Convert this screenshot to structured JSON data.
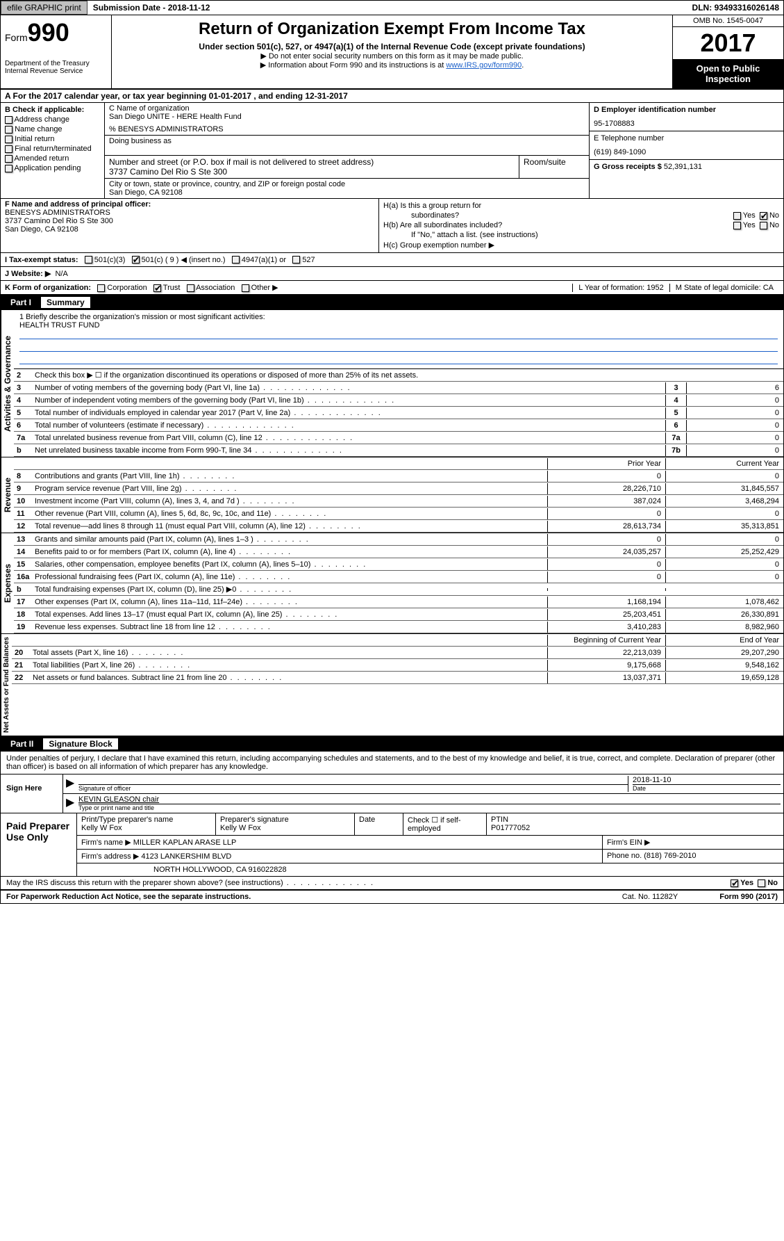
{
  "topbar": {
    "efile_btn": "efile GRAPHIC print",
    "sub_lbl": "Submission Date",
    "sub_date": "2018-11-12",
    "dln_lbl": "DLN:",
    "dln": "93493316026148"
  },
  "header": {
    "form_small": "Form",
    "form_big": "990",
    "dept1": "Department of the Treasury",
    "dept2": "Internal Revenue Service",
    "title": "Return of Organization Exempt From Income Tax",
    "sub": "Under section 501(c), 527, or 4947(a)(1) of the Internal Revenue Code (except private foundations)",
    "note1": "▶ Do not enter social security numbers on this form as it may be made public.",
    "note2_pre": "▶ Information about Form 990 and its instructions is at ",
    "note2_link": "www.IRS.gov/form990",
    "omb": "OMB No. 1545-0047",
    "year": "2017",
    "inspect1": "Open to Public",
    "inspect2": "Inspection"
  },
  "section_a": "A  For the 2017 calendar year, or tax year beginning 01-01-2017   , and ending 12-31-2017",
  "box_b": {
    "title": "B Check if applicable:",
    "items": [
      "Address change",
      "Name change",
      "Initial return",
      "Final return/terminated",
      "Amended return",
      "Application pending"
    ]
  },
  "box_c": {
    "name_lbl": "C Name of organization",
    "name": "San Diego UNITE - HERE Health Fund",
    "care_of": "% BENESYS ADMINISTRATORS",
    "dba_lbl": "Doing business as",
    "addr_lbl": "Number and street (or P.O. box if mail is not delivered to street address)",
    "addr": "3737 Camino Del Rio S Ste 300",
    "room_lbl": "Room/suite",
    "city_lbl": "City or town, state or province, country, and ZIP or foreign postal code",
    "city": "San Diego, CA  92108"
  },
  "box_d": {
    "ein_lbl": "D Employer identification number",
    "ein": "95-1708883",
    "tel_lbl": "E Telephone number",
    "tel": "(619) 849-1090",
    "gross_lbl": "G Gross receipts $",
    "gross": "52,391,131"
  },
  "box_f": {
    "lbl": "F Name and address of principal officer:",
    "name": "BENESYS ADMINISTRATORS",
    "addr1": "3737 Camino Del Rio S Ste 300",
    "addr2": "San Diego, CA  92108"
  },
  "box_h": {
    "ha": "H(a)  Is this a group return for",
    "ha2": "subordinates?",
    "hb": "H(b)  Are all subordinates included?",
    "hnote": "If \"No,\" attach a list. (see instructions)",
    "hc": "H(c)  Group exemption number ▶",
    "yes": "Yes",
    "no": "No"
  },
  "row_i": {
    "lbl": "I  Tax-exempt status:",
    "o1": "501(c)(3)",
    "o2": "501(c) ( 9 ) ◀ (insert no.)",
    "o3": "4947(a)(1) or",
    "o4": "527"
  },
  "row_j": {
    "lbl": "J  Website: ▶",
    "val": "N/A"
  },
  "row_k": {
    "lbl": "K Form of organization:",
    "o1": "Corporation",
    "o2": "Trust",
    "o3": "Association",
    "o4": "Other ▶",
    "l": "L Year of formation: 1952",
    "m": "M State of legal domicile: CA"
  },
  "part1": {
    "num": "Part I",
    "title": "Summary"
  },
  "summary": {
    "side1": "Activities & Governance",
    "side2": "Revenue",
    "side3": "Expenses",
    "side4": "Net Assets or Fund Balances",
    "l1_lbl": "1  Briefly describe the organization's mission or most significant activities:",
    "l1_val": "HEALTH TRUST FUND",
    "l2": "Check this box ▶ ☐  if the organization discontinued its operations or disposed of more than 25% of its net assets.",
    "rows_gov": [
      {
        "n": "3",
        "d": "Number of voting members of the governing body (Part VI, line 1a)",
        "b": "3",
        "v": "6"
      },
      {
        "n": "4",
        "d": "Number of independent voting members of the governing body (Part VI, line 1b)",
        "b": "4",
        "v": "0"
      },
      {
        "n": "5",
        "d": "Total number of individuals employed in calendar year 2017 (Part V, line 2a)",
        "b": "5",
        "v": "0"
      },
      {
        "n": "6",
        "d": "Total number of volunteers (estimate if necessary)",
        "b": "6",
        "v": "0"
      },
      {
        "n": "7a",
        "d": "Total unrelated business revenue from Part VIII, column (C), line 12",
        "b": "7a",
        "v": "0"
      },
      {
        "n": "b",
        "d": "Net unrelated business taxable income from Form 990-T, line 34",
        "b": "7b",
        "v": "0"
      }
    ],
    "hdr_py": "Prior Year",
    "hdr_cy": "Current Year",
    "rows_rev": [
      {
        "n": "8",
        "d": "Contributions and grants (Part VIII, line 1h)",
        "py": "0",
        "cy": "0"
      },
      {
        "n": "9",
        "d": "Program service revenue (Part VIII, line 2g)",
        "py": "28,226,710",
        "cy": "31,845,557"
      },
      {
        "n": "10",
        "d": "Investment income (Part VIII, column (A), lines 3, 4, and 7d )",
        "py": "387,024",
        "cy": "3,468,294"
      },
      {
        "n": "11",
        "d": "Other revenue (Part VIII, column (A), lines 5, 6d, 8c, 9c, 10c, and 11e)",
        "py": "0",
        "cy": "0"
      },
      {
        "n": "12",
        "d": "Total revenue—add lines 8 through 11 (must equal Part VIII, column (A), line 12)",
        "py": "28,613,734",
        "cy": "35,313,851"
      }
    ],
    "rows_exp": [
      {
        "n": "13",
        "d": "Grants and similar amounts paid (Part IX, column (A), lines 1–3 )",
        "py": "0",
        "cy": "0"
      },
      {
        "n": "14",
        "d": "Benefits paid to or for members (Part IX, column (A), line 4)",
        "py": "24,035,257",
        "cy": "25,252,429"
      },
      {
        "n": "15",
        "d": "Salaries, other compensation, employee benefits (Part IX, column (A), lines 5–10)",
        "py": "0",
        "cy": "0"
      },
      {
        "n": "16a",
        "d": "Professional fundraising fees (Part IX, column (A), line 11e)",
        "py": "0",
        "cy": "0"
      },
      {
        "n": "b",
        "d": "Total fundraising expenses (Part IX, column (D), line 25) ▶0",
        "py": "",
        "cy": "",
        "shade": true
      },
      {
        "n": "17",
        "d": "Other expenses (Part IX, column (A), lines 11a–11d, 11f–24e)",
        "py": "1,168,194",
        "cy": "1,078,462"
      },
      {
        "n": "18",
        "d": "Total expenses. Add lines 13–17 (must equal Part IX, column (A), line 25)",
        "py": "25,203,451",
        "cy": "26,330,891"
      },
      {
        "n": "19",
        "d": "Revenue less expenses. Subtract line 18 from line 12",
        "py": "3,410,283",
        "cy": "8,982,960"
      }
    ],
    "hdr_bcy": "Beginning of Current Year",
    "hdr_eoy": "End of Year",
    "rows_net": [
      {
        "n": "20",
        "d": "Total assets (Part X, line 16)",
        "py": "22,213,039",
        "cy": "29,207,290"
      },
      {
        "n": "21",
        "d": "Total liabilities (Part X, line 26)",
        "py": "9,175,668",
        "cy": "9,548,162"
      },
      {
        "n": "22",
        "d": "Net assets or fund balances. Subtract line 21 from line 20",
        "py": "13,037,371",
        "cy": "19,659,128"
      }
    ]
  },
  "part2": {
    "num": "Part II",
    "title": "Signature Block"
  },
  "sig": {
    "intro": "Under penalties of perjury, I declare that I have examined this return, including accompanying schedules and statements, and to the best of my knowledge and belief, it is true, correct, and complete. Declaration of preparer (other than officer) is based on all information of which preparer has any knowledge.",
    "sign_here": "Sign Here",
    "sig_officer": "Signature of officer",
    "date_lbl": "Date",
    "date": "2018-11-10",
    "name_title": "KEVIN GLEASON chair",
    "name_lbl": "Type or print name and title"
  },
  "paid": {
    "left": "Paid Preparer Use Only",
    "r1": {
      "c1_lbl": "Print/Type preparer's name",
      "c1": "Kelly W Fox",
      "c2_lbl": "Preparer's signature",
      "c2": "Kelly W Fox",
      "c3": "Date",
      "c4_lbl": "Check ☐ if self-employed",
      "c5_lbl": "PTIN",
      "c5": "P01777052"
    },
    "r2": {
      "lbl": "Firm's name    ▶",
      "val": "MILLER KAPLAN ARASE LLP",
      "ein": "Firm's EIN ▶"
    },
    "r3": {
      "lbl": "Firm's address ▶",
      "val": "4123 LANKERSHIM BLVD",
      "ph_lbl": "Phone no.",
      "ph": "(818) 769-2010"
    },
    "r4": "NORTH HOLLYWOOD, CA  916022828"
  },
  "discuss": {
    "q": "May the IRS discuss this return with the preparer shown above? (see instructions)",
    "yes": "Yes",
    "no": "No"
  },
  "footer": {
    "left": "For Paperwork Reduction Act Notice, see the separate instructions.",
    "cat": "Cat. No. 11282Y",
    "right": "Form 990 (2017)"
  }
}
